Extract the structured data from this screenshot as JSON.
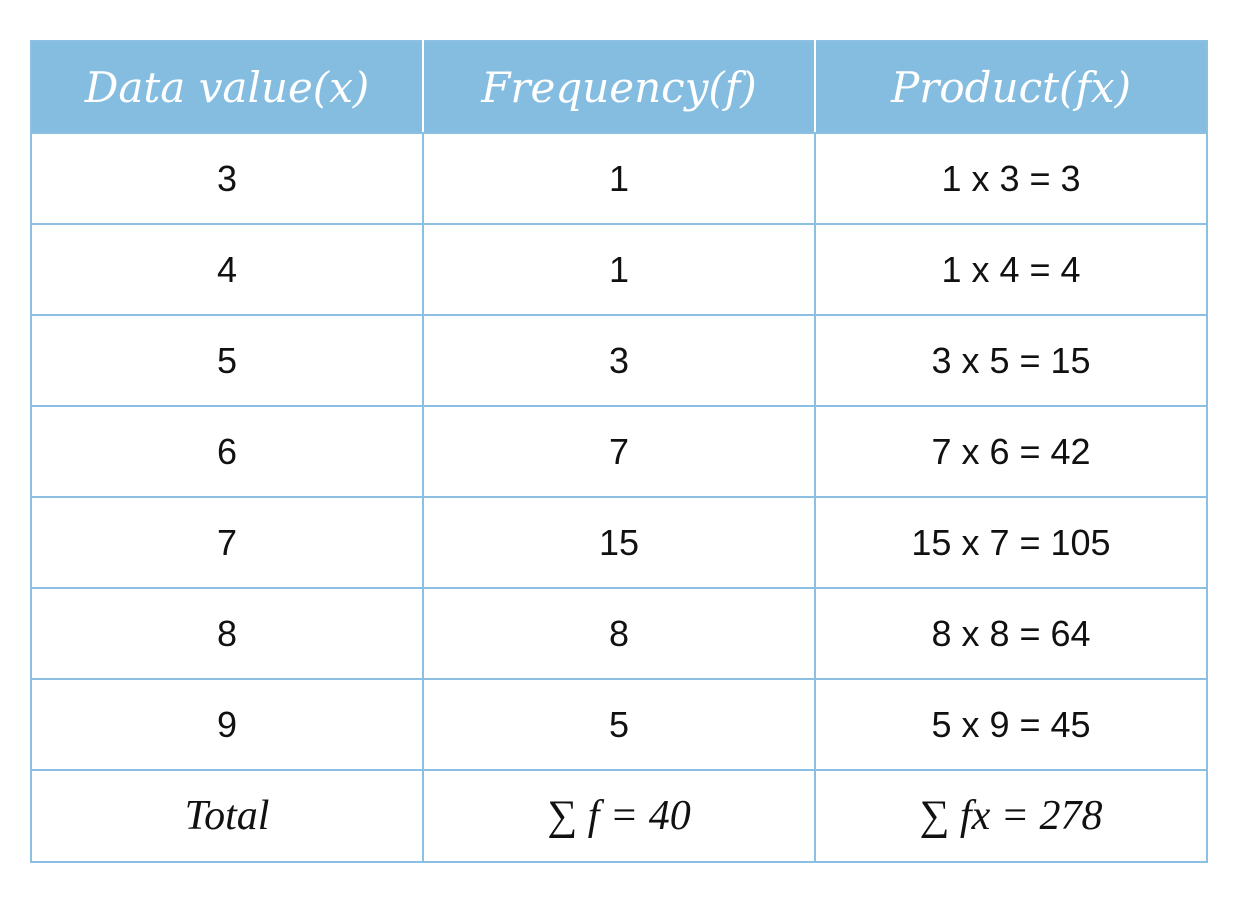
{
  "table": {
    "header": [
      "Data value(x)",
      "Frequency(f)",
      "Product(fx)"
    ],
    "rows": [
      [
        "3",
        "1",
        "1 x 3 = 3"
      ],
      [
        "4",
        "1",
        "1 x 4 = 4"
      ],
      [
        "5",
        "3",
        "3 x 5 = 15"
      ],
      [
        "6",
        "7",
        "7 x 6 = 42"
      ],
      [
        "7",
        "15",
        "15 x 7 = 105"
      ],
      [
        "8",
        "8",
        "8 x 8 = 64"
      ],
      [
        "9",
        "5",
        "5 x 9 = 45"
      ]
    ],
    "total": [
      "Total",
      "∑ f = 40",
      "∑ fx = 278"
    ]
  }
}
